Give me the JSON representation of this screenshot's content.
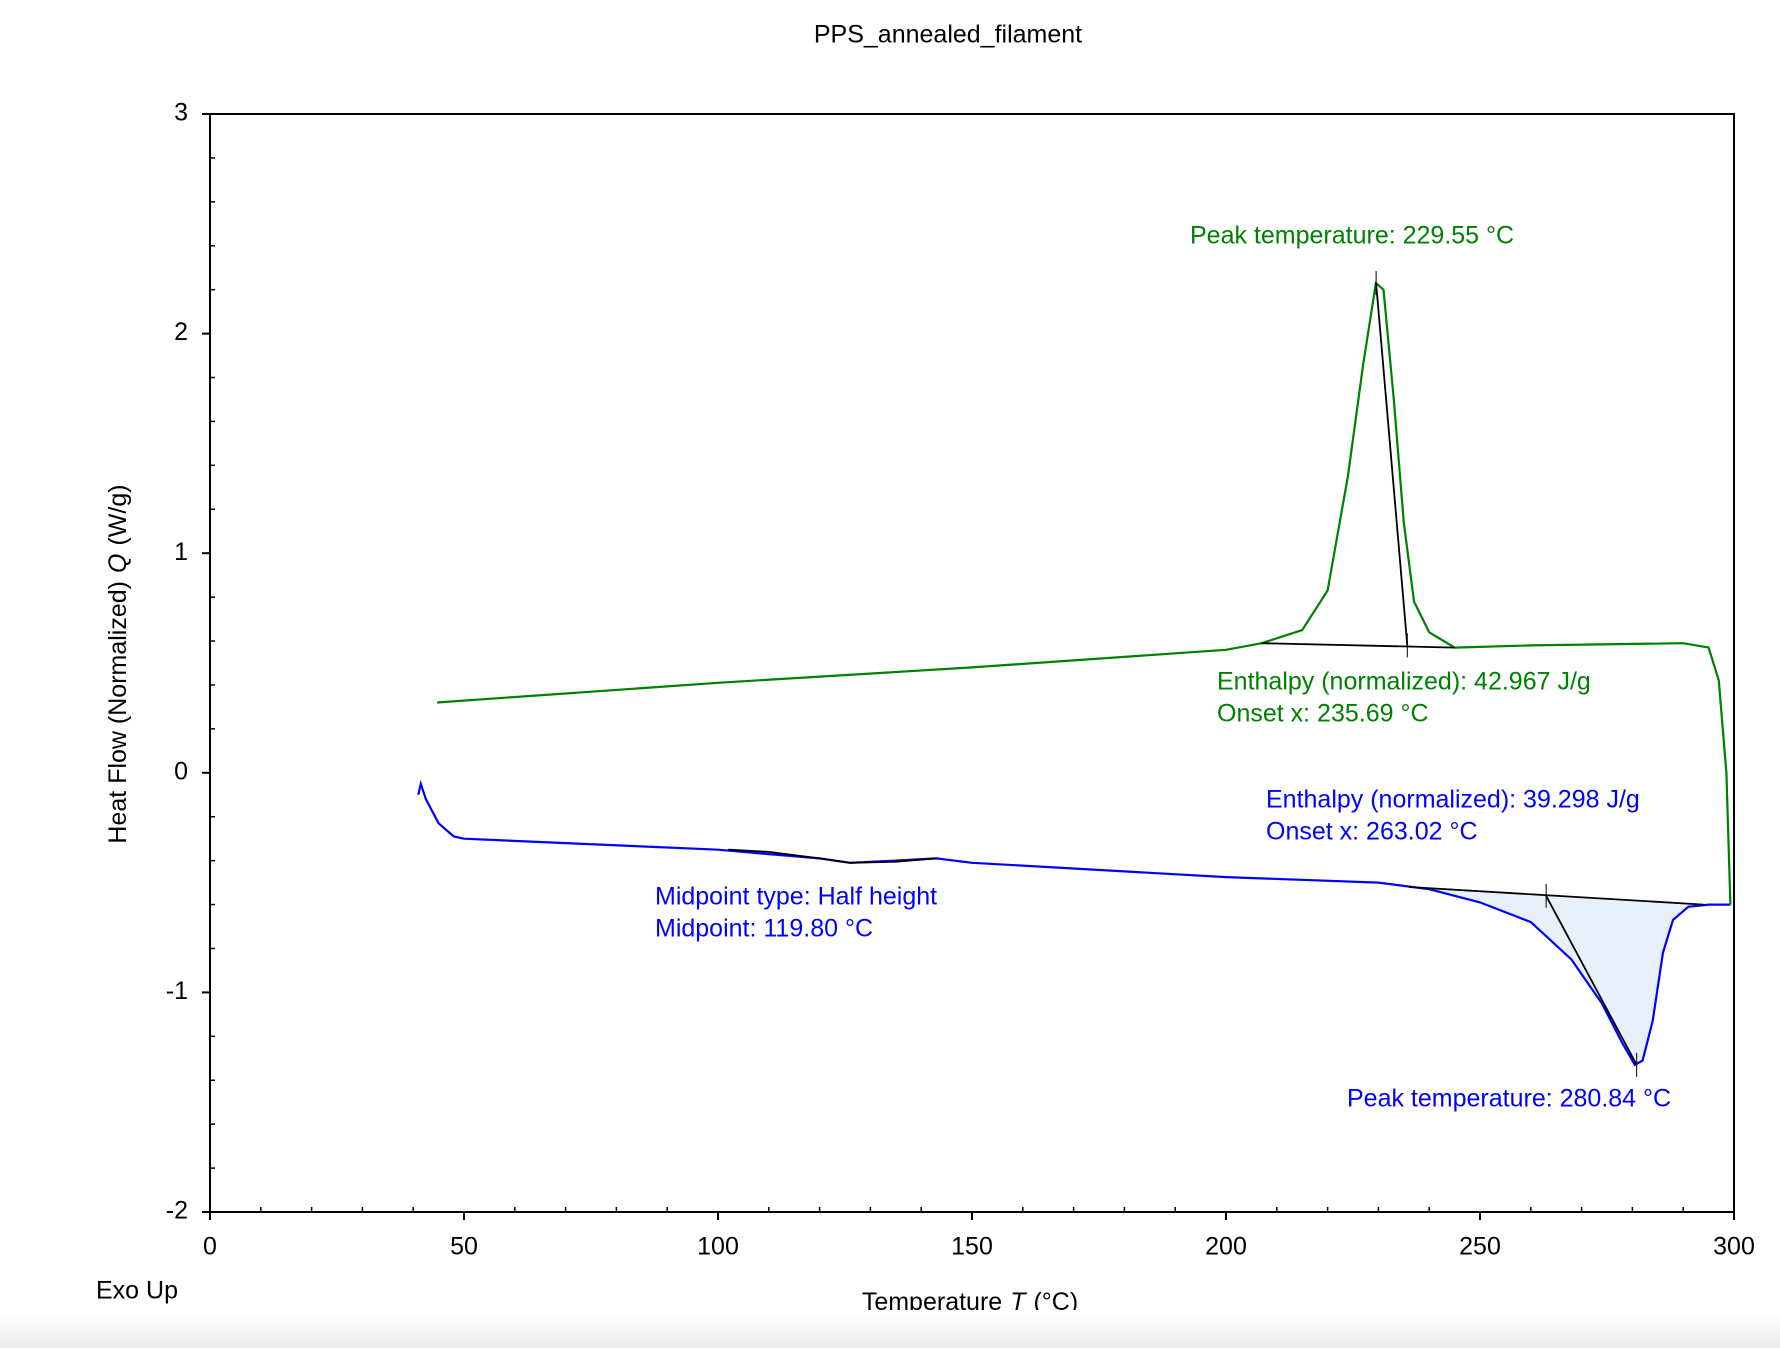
{
  "chart_data": {
    "type": "line",
    "title": "PPS_annealed_filament",
    "xlabel": [
      "Temperature",
      "T",
      "(°C)"
    ],
    "ylabel": [
      "Heat Flow (Normalized)",
      "Q",
      "(W/g)"
    ],
    "corner_note": "Exo Up",
    "xlim": [
      0,
      300
    ],
    "ylim": [
      -2,
      3
    ],
    "xticks": [
      0,
      50,
      100,
      150,
      200,
      250,
      300
    ],
    "yticks": [
      -2,
      -1,
      0,
      1,
      2,
      3
    ],
    "xminorticks": [
      10,
      20,
      30,
      40,
      60,
      70,
      80,
      90,
      110,
      120,
      130,
      140,
      160,
      170,
      180,
      190,
      210,
      220,
      230,
      240,
      260,
      270,
      280,
      290
    ],
    "yminorticks": [
      -1.8,
      -1.6,
      -1.4,
      -1.2,
      -0.8,
      -0.6,
      -0.4,
      -0.2,
      0.2,
      0.4,
      0.6,
      0.8,
      1.2,
      1.4,
      1.6,
      1.8,
      2.2,
      2.4,
      2.6,
      2.8
    ],
    "series": [
      {
        "color": "#0000ff",
        "x": [
          41,
          41.5,
          42.5,
          45,
          48,
          50,
          70,
          100,
          110,
          120,
          126,
          135,
          143,
          150,
          200,
          230,
          240,
          250,
          260,
          268,
          274,
          278,
          280.5,
          282,
          284,
          286,
          288,
          291,
          295,
          299.3
        ],
        "values": [
          -0.1,
          -0.05,
          -0.12,
          -0.23,
          -0.29,
          -0.3,
          -0.32,
          -0.35,
          -0.37,
          -0.39,
          -0.41,
          -0.4,
          -0.39,
          -0.41,
          -0.475,
          -0.5,
          -0.53,
          -0.59,
          -0.68,
          -0.85,
          -1.05,
          -1.23,
          -1.33,
          -1.31,
          -1.13,
          -0.82,
          -0.67,
          -0.61,
          -0.6,
          -0.6
        ]
      },
      {
        "color": "#008000",
        "x": [
          299.3,
          298.5,
          297,
          295,
          290,
          260,
          245,
          240,
          237,
          235,
          233,
          231,
          229.5,
          227,
          224,
          220,
          215,
          207,
          200,
          150,
          100,
          44.7
        ],
        "values": [
          -0.6,
          0.0,
          0.42,
          0.57,
          0.59,
          0.58,
          0.57,
          0.64,
          0.78,
          1.14,
          1.71,
          2.2,
          2.23,
          1.86,
          1.35,
          0.83,
          0.65,
          0.59,
          0.56,
          0.48,
          0.41,
          0.32
        ]
      }
    ],
    "baselines": [
      {
        "color": "#000000",
        "x": [
          207,
          245
        ],
        "values": [
          0.59,
          0.57
        ]
      },
      {
        "color": "#000000",
        "fill": "#e8f1fb",
        "x": [
          236,
          294
        ],
        "values": [
          -0.52,
          -0.6
        ]
      },
      {
        "color": "#000000",
        "x": [
          102,
          110,
          120,
          126,
          135,
          143
        ],
        "values": [
          -0.35,
          -0.36,
          -0.39,
          -0.41,
          -0.405,
          -0.39
        ]
      }
    ],
    "tangents": [
      {
        "color": "#000000",
        "x": [
          229.55,
          235.69
        ],
        "values": [
          2.23,
          0.58
        ]
      },
      {
        "color": "#000000",
        "x": [
          263.02,
          280.84
        ],
        "values": [
          -0.56,
          -1.33
        ]
      }
    ],
    "annotations": [
      {
        "color": "#008000",
        "lines": [
          "Peak temperature: 229.55 °C"
        ]
      },
      {
        "color": "#008000",
        "lines": [
          "Enthalpy (normalized): 42.967 J/g",
          "Onset x: 235.69 °C"
        ]
      },
      {
        "color": "#0000ff",
        "lines": [
          "Enthalpy (normalized): 39.298 J/g",
          "Onset x: 263.02 °C"
        ]
      },
      {
        "color": "#0000ff",
        "lines": [
          "Midpoint type: Half height",
          "Midpoint: 119.80 °C"
        ]
      },
      {
        "color": "#0000ff",
        "lines": [
          "Peak temperature: 280.84 °C"
        ]
      }
    ]
  }
}
